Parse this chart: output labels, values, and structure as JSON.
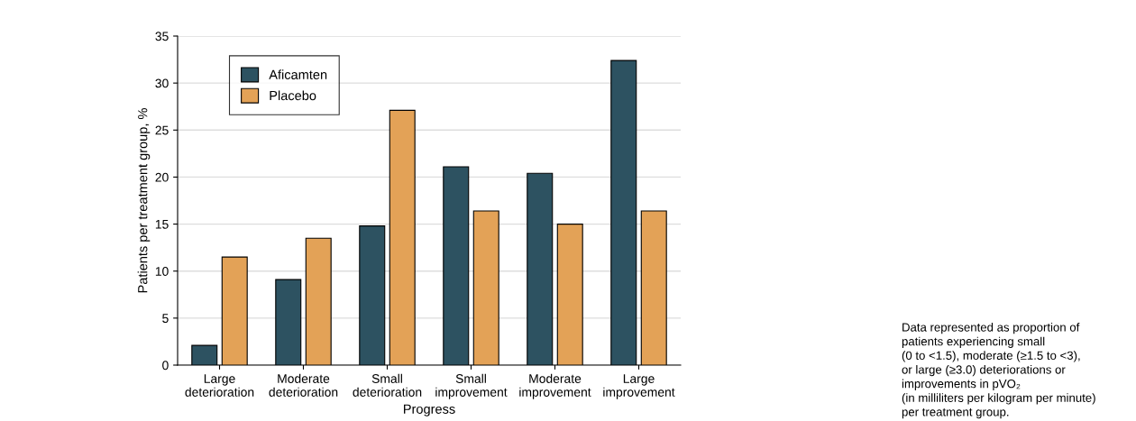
{
  "chart_data": {
    "type": "bar",
    "categories": [
      "Large\ndeterioration",
      "Moderate\ndeterioration",
      "Small\ndeterioration",
      "Small\nimprovement",
      "Moderate\nimprovement",
      "Large\nimprovement"
    ],
    "series": [
      {
        "name": "Aficamten",
        "color": "#2d5261",
        "values": [
          2.1,
          9.1,
          14.8,
          21.1,
          20.4,
          32.4
        ]
      },
      {
        "name": "Placebo",
        "color": "#e3a257",
        "values": [
          11.5,
          13.5,
          27.1,
          16.4,
          15.0,
          16.4
        ]
      }
    ],
    "xlabel": "Progress",
    "ylabel": "Patients per treatment group, %",
    "ylim": [
      0,
      35
    ],
    "yticks": [
      0,
      5,
      10,
      15,
      20,
      25,
      30,
      35
    ],
    "grid": "y",
    "legend": "top left",
    "annotations": [
      "Data represented as proportion of\npatients experiencing small\n(0 to <1.5), moderate (≥1.5 to <3),\nor large (≥3.0) deteriorations or\nimprovements in pVO₂\n(in milliliters per kilogram per minute)\nper treatment group."
    ]
  }
}
